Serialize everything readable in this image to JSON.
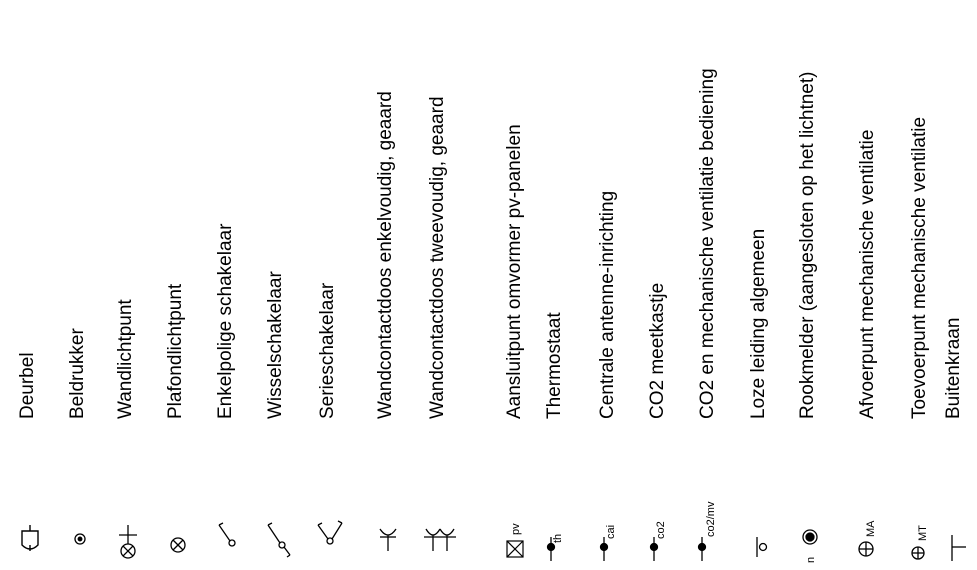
{
  "items": [
    {
      "label": "Deurbel",
      "icon": "doorbell-icon",
      "code": ""
    },
    {
      "label": "Beldrukker",
      "icon": "bell-push-icon",
      "code": ""
    },
    {
      "label": "Wandlichtpunt",
      "icon": "wall-light-icon",
      "code": ""
    },
    {
      "label": "Plafondlichtpunt",
      "icon": "ceiling-light-icon",
      "code": ""
    },
    {
      "label": "Enkelpolige schakelaar",
      "icon": "single-switch-icon",
      "code": ""
    },
    {
      "label": "Wisselschakelaar",
      "icon": "two-way-switch-icon",
      "code": ""
    },
    {
      "label": "Serieschakelaar",
      "icon": "series-switch-icon",
      "code": ""
    },
    {
      "label": "Wandcontactdoos enkelvoudig, geaard",
      "icon": "single-socket-icon",
      "code": ""
    },
    {
      "label": "Wandcontactdoos tweevoudig, geaard",
      "icon": "double-socket-icon",
      "code": ""
    },
    {
      "label": "Aansluitpunt omvormer pv-panelen",
      "icon": "pv-inverter-icon",
      "code": "pv"
    },
    {
      "label": "Thermostaat",
      "icon": "thermostat-icon",
      "code": "th"
    },
    {
      "label": "Centrale antenne-inrichting",
      "icon": "antenna-icon",
      "code": "cai"
    },
    {
      "label": "CO2 meetkastje",
      "icon": "co2-sensor-icon",
      "code": "co2"
    },
    {
      "label": "CO2 en mechanische ventilatie bediening",
      "icon": "co2-mv-control-icon",
      "code": "co2/mv"
    },
    {
      "label": "Loze leiding algemeen",
      "icon": "empty-conduit-icon",
      "code": ""
    },
    {
      "label": "Rookmelder (aangesloten op het lichtnet)",
      "icon": "smoke-detector-icon",
      "code": "n"
    },
    {
      "label": "Afvoerpunt mechanische ventilatie",
      "icon": "exhaust-vent-icon",
      "code": "MA"
    },
    {
      "label": "Toevoerpunt mechanische ventilatie",
      "icon": "supply-vent-icon",
      "code": "MT"
    },
    {
      "label": "Buitenkraan",
      "icon": "outdoor-tap-icon",
      "code": ""
    }
  ]
}
